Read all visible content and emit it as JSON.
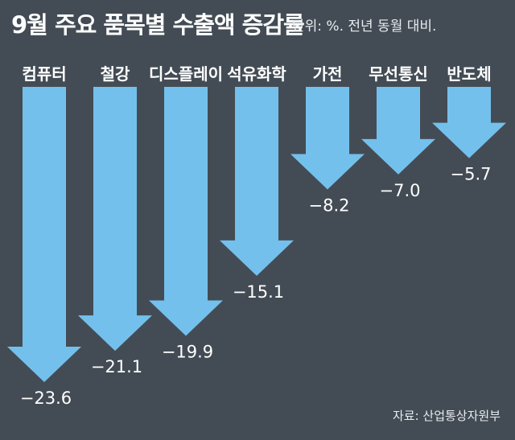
{
  "title": "9월 주요 품목별 수출액 증감률",
  "subtitle": "단위: %. 전년 동월 대비.",
  "source": "자료: 산업통상자원부",
  "colors": {
    "background": "#434c55",
    "arrow": "#74c0ec",
    "text": "#ffffff"
  },
  "chart_data": {
    "type": "bar",
    "title": "9월 주요 품목별 수출액 증감률",
    "unit": "%",
    "categories": [
      "컴퓨터",
      "철강",
      "디스플레이",
      "석유화학",
      "가전",
      "무선통신",
      "반도체"
    ],
    "value_labels": [
      "−23.6",
      "−21.1",
      "−19.9",
      "−15.1",
      "−8.2",
      "−7.0",
      "−5.7"
    ],
    "values": [
      -23.6,
      -21.1,
      -19.9,
      -15.1,
      -8.2,
      -7.0,
      -5.7
    ],
    "ylim": [
      -23.6,
      0
    ],
    "grid": false
  }
}
